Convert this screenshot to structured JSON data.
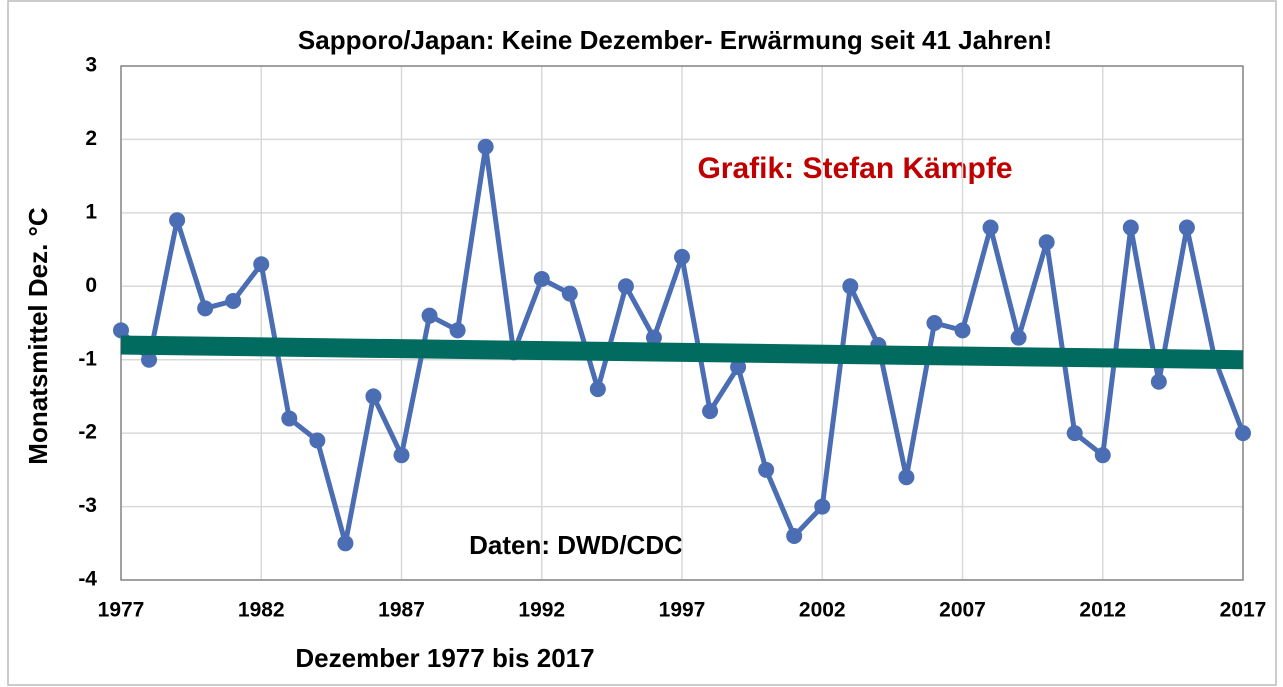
{
  "chart_data": {
    "type": "line",
    "title": "Sapporo/Japan:  Keine Dezember- Erwärmung seit 41 Jahren!",
    "x_label": "Dezember 1977 bis 2017",
    "y_label": "Monatsmittel Dez. °C",
    "annotations": [
      "Grafik: Stefan Kämpfe",
      "Daten: DWD/CDC"
    ],
    "x": [
      1977,
      1978,
      1979,
      1980,
      1981,
      1982,
      1983,
      1984,
      1985,
      1986,
      1987,
      1988,
      1989,
      1990,
      1991,
      1992,
      1993,
      1994,
      1995,
      1996,
      1997,
      1998,
      1999,
      2000,
      2001,
      2002,
      2003,
      2004,
      2005,
      2006,
      2007,
      2008,
      2009,
      2010,
      2011,
      2012,
      2013,
      2014,
      2015,
      2016,
      2017
    ],
    "series": [
      {
        "color": "#4a6db3",
        "values": [
          -0.6,
          -1.0,
          0.9,
          -0.3,
          -0.2,
          0.3,
          -1.8,
          -2.1,
          -3.5,
          -1.5,
          -2.3,
          -0.4,
          -0.6,
          1.9,
          -0.9,
          0.1,
          -0.1,
          -1.4,
          0.0,
          -0.7,
          0.4,
          -1.7,
          -1.1,
          -2.5,
          -3.4,
          -3.0,
          0.0,
          -0.8,
          -2.6,
          -0.5,
          -0.6,
          0.8,
          -0.7,
          0.6,
          -2.0,
          -2.3,
          0.8,
          -1.3,
          0.8,
          -1.0,
          -2.0
        ]
      }
    ],
    "trend": {
      "x": [
        1977,
        2017
      ],
      "values": [
        -0.8,
        -1.0
      ],
      "color": "#006b5e"
    },
    "xlim": [
      1977,
      2017
    ],
    "ylim": [
      -4,
      3
    ],
    "xticks": [
      1977,
      1982,
      1987,
      1992,
      1997,
      2002,
      2007,
      2012,
      2017
    ],
    "yticks": [
      -4,
      -3,
      -2,
      -1,
      0,
      1,
      2,
      3
    ],
    "grid": true
  }
}
